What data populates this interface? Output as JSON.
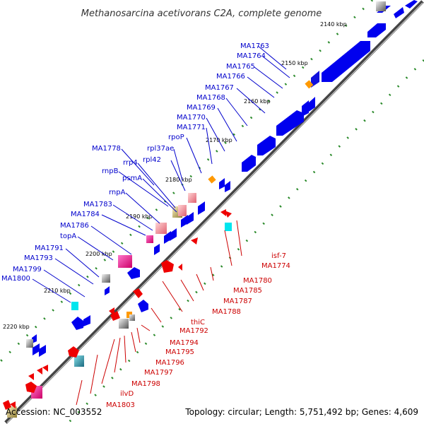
{
  "title": "Methanosarcina acetivorans C2A, complete genome",
  "footer": {
    "accession": "Accession: NC_003552",
    "summary": "Topology: circular; Length: 5,751,492 bp; Genes: 4,609"
  },
  "colors": {
    "forward_label": "#0000cc",
    "reverse_label": "#cc0000",
    "forward_gene": "#0000ee",
    "reverse_gene": "#ee0000",
    "tick": "#2a8a2a",
    "backbone": "#555555"
  },
  "ticks": [
    "2140 kbp",
    "2150 kbp",
    "2160 kbp",
    "2170 kbp",
    "2180 kbp",
    "2190 kbp",
    "2200 kbp",
    "2210 kbp",
    "2220 kbp"
  ],
  "forward_labels": [
    "MA1763",
    "MA1764",
    "MA1765",
    "MA1766",
    "MA1767",
    "MA1768",
    "MA1769",
    "MA1770",
    "MA1771",
    "rpoP",
    "rpl37ae",
    "rpl42",
    "MA1778",
    "rrp4",
    "rnpB",
    "psmA",
    "rnpA",
    "MA1783",
    "MA1784",
    "MA1786",
    "topA",
    "MA1791",
    "MA1793",
    "MA1799",
    "MA1800"
  ],
  "reverse_labels": [
    "isf-7",
    "MA1774",
    "MA1780",
    "MA1785",
    "MA1787",
    "MA1788",
    "thiC",
    "MA1792",
    "MA1794",
    "MA1795",
    "MA1796",
    "MA1797",
    "MA1798",
    "ilvD",
    "MA1803"
  ]
}
